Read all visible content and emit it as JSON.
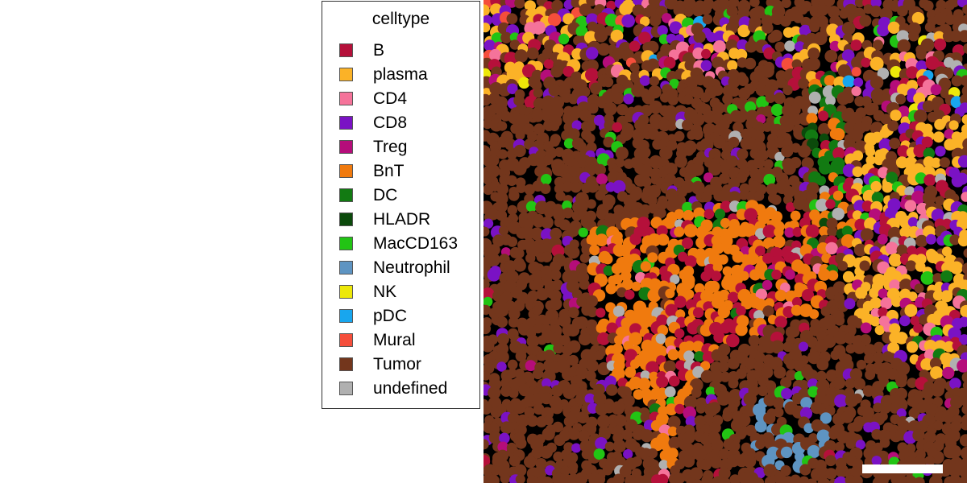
{
  "legend": {
    "title": "celltype",
    "items": [
      {
        "label": "B",
        "color": "#B5103A"
      },
      {
        "label": "plasma",
        "color": "#FBB227"
      },
      {
        "label": "CD4",
        "color": "#F5739A"
      },
      {
        "label": "CD8",
        "color": "#7A12C4"
      },
      {
        "label": "Treg",
        "color": "#B50D7A"
      },
      {
        "label": "BnT",
        "color": "#F07A0E"
      },
      {
        "label": "DC",
        "color": "#127A12"
      },
      {
        "label": "HLADR",
        "color": "#0B4A0B"
      },
      {
        "label": "MacCD163",
        "color": "#22C414"
      },
      {
        "label": "Neutrophil",
        "color": "#5E94C2"
      },
      {
        "label": "NK",
        "color": "#EDE809"
      },
      {
        "label": "pDC",
        "color": "#18A6EE"
      },
      {
        "label": "Mural",
        "color": "#F54E3B"
      },
      {
        "label": "Tumor",
        "color": "#73361C"
      },
      {
        "label": "undefined",
        "color": "#B0B0B0"
      }
    ]
  },
  "image": {
    "background_color": "#000000",
    "scale_bar_color": "#ffffff"
  }
}
